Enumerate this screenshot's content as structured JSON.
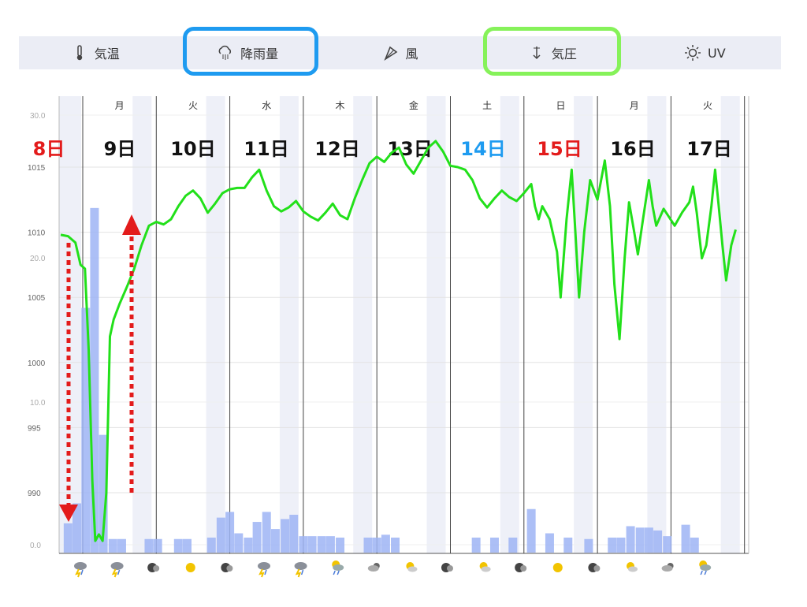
{
  "tabs": [
    {
      "id": "temp",
      "label": "気温",
      "icon": "thermometer-icon"
    },
    {
      "id": "rain",
      "label": "降雨量",
      "icon": "rain-cloud-icon"
    },
    {
      "id": "wind",
      "label": "風",
      "icon": "wind-icon"
    },
    {
      "id": "pressure",
      "label": "気圧",
      "icon": "pressure-arrow-icon"
    },
    {
      "id": "uv",
      "label": "UV",
      "icon": "sun-icon"
    }
  ],
  "highlight_colors": {
    "rain": "#1e9bf0",
    "pressure": "#86f25a"
  },
  "chart_data": {
    "type": "line",
    "weekday_labels": [
      "月",
      "火",
      "水",
      "木",
      "金",
      "土",
      "日",
      "月",
      "火"
    ],
    "day_labels": [
      {
        "text": "8日",
        "color": "#e31b1b"
      },
      {
        "text": "9日",
        "color": "#111111"
      },
      {
        "text": "10日",
        "color": "#111111"
      },
      {
        "text": "11日",
        "color": "#111111"
      },
      {
        "text": "12日",
        "color": "#111111"
      },
      {
        "text": "13日",
        "color": "#111111"
      },
      {
        "text": "14日",
        "color": "#1e9bf0"
      },
      {
        "text": "15日",
        "color": "#e31b1b"
      },
      {
        "text": "16日",
        "color": "#111111"
      },
      {
        "text": "17日",
        "color": "#111111"
      }
    ],
    "pressure_ticks": [
      "1015",
      "1010",
      "1005",
      "1000",
      "995",
      "990"
    ],
    "rain_ticks": [
      "30.0",
      "20.0",
      "10.0",
      "0.0"
    ],
    "pressure_ylim": [
      985,
      1020
    ],
    "rain_ylim": [
      0,
      30
    ],
    "x_range_days": [
      8.0,
      17.7
    ],
    "series": [
      {
        "kind": "pressure",
        "color": "#22e01a",
        "points": [
          [
            8.0,
            1009.8
          ],
          [
            8.1,
            1009.7
          ],
          [
            8.2,
            1009.2
          ],
          [
            8.27,
            1007.5
          ],
          [
            8.33,
            1007.2
          ],
          [
            8.38,
            1001
          ],
          [
            8.43,
            991
          ],
          [
            8.47,
            986.3
          ],
          [
            8.52,
            986.8
          ],
          [
            8.57,
            986.3
          ],
          [
            8.62,
            990
          ],
          [
            8.67,
            1002
          ],
          [
            8.72,
            1003.3
          ],
          [
            8.8,
            1004.5
          ],
          [
            8.9,
            1005.8
          ],
          [
            9.0,
            1007.2
          ],
          [
            9.1,
            1009
          ],
          [
            9.2,
            1010.5
          ],
          [
            9.3,
            1010.8
          ],
          [
            9.4,
            1010.6
          ],
          [
            9.5,
            1011
          ],
          [
            9.6,
            1012
          ],
          [
            9.7,
            1012.8
          ],
          [
            9.8,
            1013.2
          ],
          [
            9.9,
            1012.6
          ],
          [
            10.0,
            1011.5
          ],
          [
            10.1,
            1012.2
          ],
          [
            10.2,
            1013
          ],
          [
            10.3,
            1013.3
          ],
          [
            10.4,
            1013.4
          ],
          [
            10.5,
            1013.4
          ],
          [
            10.6,
            1014.2
          ],
          [
            10.7,
            1014.8
          ],
          [
            10.8,
            1013.2
          ],
          [
            10.9,
            1012
          ],
          [
            11.0,
            1011.6
          ],
          [
            11.1,
            1011.9
          ],
          [
            11.2,
            1012.4
          ],
          [
            11.3,
            1011.6
          ],
          [
            11.4,
            1011.2
          ],
          [
            11.5,
            1010.9
          ],
          [
            11.6,
            1011.5
          ],
          [
            11.7,
            1012.2
          ],
          [
            11.8,
            1011.3
          ],
          [
            11.9,
            1011
          ],
          [
            12.0,
            1012.6
          ],
          [
            12.1,
            1014
          ],
          [
            12.2,
            1015.3
          ],
          [
            12.3,
            1015.8
          ],
          [
            12.4,
            1015.4
          ],
          [
            12.5,
            1016.1
          ],
          [
            12.6,
            1016.5
          ],
          [
            12.7,
            1015.2
          ],
          [
            12.8,
            1014.5
          ],
          [
            12.9,
            1015.5
          ],
          [
            13.0,
            1016.5
          ],
          [
            13.1,
            1017
          ],
          [
            13.2,
            1016.2
          ],
          [
            13.3,
            1015.1
          ],
          [
            13.4,
            1015
          ],
          [
            13.5,
            1014.8
          ],
          [
            13.6,
            1014
          ],
          [
            13.7,
            1012.6
          ],
          [
            13.8,
            1011.9
          ],
          [
            13.9,
            1012.6
          ],
          [
            14.0,
            1013.2
          ],
          [
            14.1,
            1012.7
          ],
          [
            14.2,
            1012.4
          ],
          [
            14.3,
            1013
          ],
          [
            14.4,
            1013.7
          ],
          [
            14.45,
            1012
          ],
          [
            14.5,
            1011
          ],
          [
            14.55,
            1012
          ],
          [
            14.65,
            1011
          ],
          [
            14.75,
            1008.5
          ],
          [
            14.8,
            1005
          ],
          [
            14.88,
            1011
          ],
          [
            14.95,
            1014.8
          ],
          [
            15.0,
            1010
          ],
          [
            15.05,
            1005
          ],
          [
            15.12,
            1010
          ],
          [
            15.2,
            1014
          ],
          [
            15.3,
            1012.5
          ],
          [
            15.4,
            1015.5
          ],
          [
            15.47,
            1012
          ],
          [
            15.53,
            1006
          ],
          [
            15.6,
            1001.8
          ],
          [
            15.67,
            1008
          ],
          [
            15.73,
            1012.3
          ],
          [
            15.8,
            1010
          ],
          [
            15.85,
            1008.3
          ],
          [
            15.92,
            1011
          ],
          [
            16.0,
            1014
          ],
          [
            16.05,
            1012
          ],
          [
            16.1,
            1010.5
          ],
          [
            16.2,
            1011.8
          ],
          [
            16.27,
            1011.2
          ],
          [
            16.35,
            1010.5
          ],
          [
            16.45,
            1011.5
          ],
          [
            16.55,
            1012.3
          ],
          [
            16.6,
            1013.5
          ],
          [
            16.65,
            1011.5
          ],
          [
            16.72,
            1008
          ],
          [
            16.78,
            1009
          ],
          [
            16.85,
            1012
          ],
          [
            16.9,
            1014.8
          ],
          [
            16.95,
            1012
          ],
          [
            17.0,
            1009
          ],
          [
            17.05,
            1006.3
          ],
          [
            17.12,
            1009
          ],
          [
            17.18,
            1010.2
          ]
        ]
      },
      {
        "kind": "rain",
        "color": "#9db4f5",
        "bars": [
          [
            8.1,
            1.5
          ],
          [
            8.22,
            2.9
          ],
          [
            8.34,
            16.6
          ],
          [
            8.46,
            23.6
          ],
          [
            8.58,
            7.7
          ],
          [
            8.71,
            0.4
          ],
          [
            8.83,
            0.4
          ],
          [
            9.2,
            0.4
          ],
          [
            9.32,
            0.4
          ],
          [
            9.6,
            0.4
          ],
          [
            9.72,
            0.4
          ],
          [
            10.05,
            0.5
          ],
          [
            10.18,
            1.9
          ],
          [
            10.3,
            2.3
          ],
          [
            10.42,
            0.8
          ],
          [
            10.55,
            0.5
          ],
          [
            10.67,
            1.6
          ],
          [
            10.8,
            2.3
          ],
          [
            10.92,
            1.1
          ],
          [
            11.05,
            1.8
          ],
          [
            11.17,
            2.1
          ],
          [
            11.3,
            0.6
          ],
          [
            11.42,
            0.6
          ],
          [
            11.55,
            0.6
          ],
          [
            11.67,
            0.6
          ],
          [
            11.8,
            0.5
          ],
          [
            12.18,
            0.5
          ],
          [
            12.3,
            0.5
          ],
          [
            12.42,
            0.7
          ],
          [
            12.55,
            0.5
          ],
          [
            13.65,
            0.5
          ],
          [
            13.9,
            0.5
          ],
          [
            14.15,
            0.5
          ],
          [
            14.4,
            2.5
          ],
          [
            14.65,
            0.8
          ],
          [
            14.9,
            0.5
          ],
          [
            15.18,
            0.4
          ],
          [
            15.5,
            0.5
          ],
          [
            15.62,
            0.5
          ],
          [
            15.75,
            1.3
          ],
          [
            15.88,
            1.2
          ],
          [
            16.0,
            1.2
          ],
          [
            16.12,
            1.0
          ],
          [
            16.25,
            0.6
          ],
          [
            16.5,
            1.4
          ],
          [
            16.62,
            0.5
          ]
        ]
      }
    ],
    "weather_icons": [
      "thunder-rain-icon",
      "thunder-rain-icon",
      "cloudy-icon",
      "sunny-icon",
      "cloudy-icon",
      "thunder-rain-icon",
      "thunder-rain-icon",
      "sun-rain-icon",
      "cloud-sun-icon",
      "partly-sunny-icon",
      "cloudy-icon",
      "partly-sunny-icon",
      "cloudy-icon",
      "sunny-icon",
      "cloudy-icon",
      "partly-sunny-icon",
      "cloud-sun-icon",
      "sun-rain-icon"
    ],
    "annotations": [
      {
        "type": "arrow-down",
        "color": "#e31b1b"
      },
      {
        "type": "arrow-up",
        "color": "#e31b1b"
      }
    ]
  }
}
